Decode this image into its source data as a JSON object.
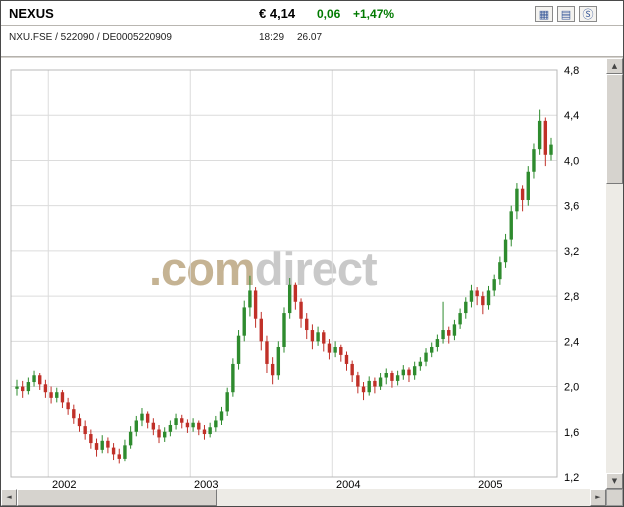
{
  "window": {
    "background": "#d6d3ce",
    "border": "#4a4a4a"
  },
  "header": {
    "title": "NEXUS",
    "instrument_ids": "NXU.FSE / 522090 / DE0005220909",
    "price": "€ 4,14",
    "change_abs": "0,06",
    "change_pct": "+1,47%",
    "change_color": "#007a00",
    "time": "18:29",
    "date": "26.07",
    "icons": [
      {
        "name": "bar-chart-icon",
        "glyph": "▦"
      },
      {
        "name": "line-chart-icon",
        "glyph": "▤"
      },
      {
        "name": "snapshot-icon",
        "glyph": "Ⓢ"
      }
    ]
  },
  "watermark": {
    "prefix": ".com",
    "suffix": "direct",
    "prefix_color": "#c5b393",
    "suffix_color": "#c9c9c9"
  },
  "scrollbar": {
    "up": "▲",
    "down": "▼",
    "left": "◄",
    "right": "►"
  },
  "chart_data": {
    "type": "candlestick",
    "description": "NEXUS (NXU.FSE) share price, weekly OHLC bars, late 2001 to mid 2005, ending at 4,14 EUR",
    "ylim": [
      1.2,
      4.8
    ],
    "grid": true,
    "legend": "none",
    "up_color": "#2e8b2e",
    "down_color": "#c03028",
    "x_start": 2001.78,
    "x_step": 0.04,
    "x_ticks": [
      {
        "label": "2002",
        "t": 2002
      },
      {
        "label": "2003",
        "t": 2003
      },
      {
        "label": "2004",
        "t": 2004
      },
      {
        "label": "2005",
        "t": 2005
      }
    ],
    "y_ticks": [
      {
        "label": "1,2",
        "v": 1.2
      },
      {
        "label": "1,6",
        "v": 1.6
      },
      {
        "label": "2,0",
        "v": 2.0
      },
      {
        "label": "2,4",
        "v": 2.4
      },
      {
        "label": "2,8",
        "v": 2.8
      },
      {
        "label": "3,2",
        "v": 3.2
      },
      {
        "label": "3,6",
        "v": 3.6
      },
      {
        "label": "4,0",
        "v": 4.0
      },
      {
        "label": "4,4",
        "v": 4.4
      },
      {
        "label": "4,8",
        "v": 4.8
      }
    ],
    "bars": [
      [
        1.98,
        2.06,
        1.92,
        2.0
      ],
      [
        2.0,
        2.05,
        1.9,
        1.96
      ],
      [
        1.96,
        2.08,
        1.93,
        2.04
      ],
      [
        2.04,
        2.14,
        2.0,
        2.1
      ],
      [
        2.1,
        2.12,
        1.97,
        2.02
      ],
      [
        2.02,
        2.06,
        1.9,
        1.95
      ],
      [
        1.95,
        2.0,
        1.85,
        1.9
      ],
      [
        1.9,
        1.99,
        1.86,
        1.95
      ],
      [
        1.95,
        1.97,
        1.81,
        1.86
      ],
      [
        1.86,
        1.9,
        1.75,
        1.8
      ],
      [
        1.8,
        1.84,
        1.67,
        1.72
      ],
      [
        1.72,
        1.76,
        1.6,
        1.65
      ],
      [
        1.65,
        1.7,
        1.53,
        1.58
      ],
      [
        1.58,
        1.62,
        1.45,
        1.5
      ],
      [
        1.5,
        1.54,
        1.38,
        1.44
      ],
      [
        1.44,
        1.57,
        1.41,
        1.52
      ],
      [
        1.52,
        1.55,
        1.41,
        1.46
      ],
      [
        1.46,
        1.5,
        1.35,
        1.4
      ],
      [
        1.4,
        1.45,
        1.32,
        1.36
      ],
      [
        1.36,
        1.53,
        1.34,
        1.48
      ],
      [
        1.48,
        1.65,
        1.45,
        1.6
      ],
      [
        1.6,
        1.74,
        1.56,
        1.7
      ],
      [
        1.7,
        1.81,
        1.65,
        1.76
      ],
      [
        1.76,
        1.78,
        1.63,
        1.68
      ],
      [
        1.68,
        1.72,
        1.57,
        1.62
      ],
      [
        1.62,
        1.66,
        1.5,
        1.55
      ],
      [
        1.55,
        1.64,
        1.51,
        1.6
      ],
      [
        1.6,
        1.7,
        1.56,
        1.66
      ],
      [
        1.66,
        1.76,
        1.62,
        1.72
      ],
      [
        1.72,
        1.75,
        1.63,
        1.68
      ],
      [
        1.68,
        1.71,
        1.59,
        1.64
      ],
      [
        1.64,
        1.72,
        1.6,
        1.68
      ],
      [
        1.68,
        1.7,
        1.57,
        1.62
      ],
      [
        1.62,
        1.66,
        1.53,
        1.58
      ],
      [
        1.58,
        1.68,
        1.55,
        1.64
      ],
      [
        1.64,
        1.74,
        1.6,
        1.7
      ],
      [
        1.7,
        1.82,
        1.66,
        1.78
      ],
      [
        1.78,
        1.99,
        1.74,
        1.95
      ],
      [
        1.95,
        2.25,
        1.91,
        2.2
      ],
      [
        2.2,
        2.5,
        2.15,
        2.45
      ],
      [
        2.45,
        2.76,
        2.4,
        2.7
      ],
      [
        2.7,
        2.98,
        2.62,
        2.85
      ],
      [
        2.85,
        2.88,
        2.52,
        2.6
      ],
      [
        2.6,
        2.66,
        2.32,
        2.4
      ],
      [
        2.4,
        2.45,
        2.12,
        2.2
      ],
      [
        2.2,
        2.26,
        2.02,
        2.1
      ],
      [
        2.1,
        2.4,
        2.06,
        2.35
      ],
      [
        2.35,
        2.7,
        2.3,
        2.65
      ],
      [
        2.65,
        2.96,
        2.6,
        2.9
      ],
      [
        2.9,
        2.92,
        2.68,
        2.75
      ],
      [
        2.75,
        2.78,
        2.52,
        2.6
      ],
      [
        2.6,
        2.65,
        2.42,
        2.5
      ],
      [
        2.5,
        2.55,
        2.33,
        2.4
      ],
      [
        2.4,
        2.53,
        2.36,
        2.48
      ],
      [
        2.48,
        2.5,
        2.31,
        2.38
      ],
      [
        2.38,
        2.42,
        2.24,
        2.3
      ],
      [
        2.3,
        2.4,
        2.26,
        2.35
      ],
      [
        2.35,
        2.37,
        2.22,
        2.28
      ],
      [
        2.28,
        2.31,
        2.14,
        2.2
      ],
      [
        2.2,
        2.23,
        2.04,
        2.1
      ],
      [
        2.1,
        2.13,
        1.94,
        2.0
      ],
      [
        2.0,
        2.04,
        1.88,
        1.95
      ],
      [
        1.95,
        2.09,
        1.92,
        2.05
      ],
      [
        2.05,
        2.08,
        1.94,
        2.0
      ],
      [
        2.0,
        2.12,
        1.97,
        2.08
      ],
      [
        2.08,
        2.16,
        2.02,
        2.12
      ],
      [
        2.12,
        2.14,
        1.99,
        2.05
      ],
      [
        2.05,
        2.14,
        2.01,
        2.1
      ],
      [
        2.1,
        2.19,
        2.06,
        2.15
      ],
      [
        2.15,
        2.17,
        2.04,
        2.1
      ],
      [
        2.1,
        2.22,
        2.06,
        2.18
      ],
      [
        2.18,
        2.26,
        2.14,
        2.22
      ],
      [
        2.22,
        2.34,
        2.18,
        2.3
      ],
      [
        2.3,
        2.39,
        2.26,
        2.35
      ],
      [
        2.35,
        2.46,
        2.31,
        2.42
      ],
      [
        2.42,
        2.75,
        2.38,
        2.5
      ],
      [
        2.5,
        2.53,
        2.38,
        2.45
      ],
      [
        2.45,
        2.59,
        2.41,
        2.55
      ],
      [
        2.55,
        2.69,
        2.51,
        2.65
      ],
      [
        2.65,
        2.79,
        2.6,
        2.75
      ],
      [
        2.75,
        2.9,
        2.7,
        2.85
      ],
      [
        2.85,
        2.88,
        2.72,
        2.8
      ],
      [
        2.8,
        2.84,
        2.64,
        2.72
      ],
      [
        2.72,
        2.89,
        2.68,
        2.85
      ],
      [
        2.85,
        2.99,
        2.8,
        2.95
      ],
      [
        2.95,
        3.15,
        2.9,
        3.1
      ],
      [
        3.1,
        3.35,
        3.05,
        3.3
      ],
      [
        3.3,
        3.6,
        3.24,
        3.55
      ],
      [
        3.55,
        3.8,
        3.48,
        3.75
      ],
      [
        3.75,
        3.78,
        3.55,
        3.65
      ],
      [
        3.65,
        3.95,
        3.6,
        3.9
      ],
      [
        3.9,
        4.15,
        3.84,
        4.1
      ],
      [
        4.1,
        4.45,
        4.05,
        4.35
      ],
      [
        4.35,
        4.38,
        3.95,
        4.05
      ],
      [
        4.05,
        4.2,
        4.0,
        4.14
      ]
    ]
  }
}
